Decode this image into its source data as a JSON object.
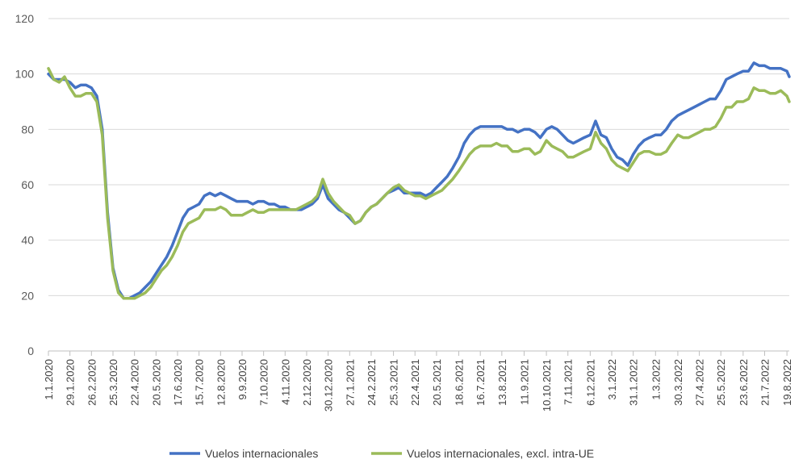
{
  "chart_data": {
    "type": "line",
    "title": "",
    "xlabel": "",
    "ylabel": "",
    "ylim": [
      0,
      120
    ],
    "y_ticks": [
      0,
      20,
      40,
      60,
      80,
      100,
      120
    ],
    "grid": "horizontal",
    "legend_position": "bottom",
    "x_range": [
      "1.1.2020",
      "22.8.2022"
    ],
    "x_tick_labels": [
      "1.1.2020",
      "29.1.2020",
      "26.2.2020",
      "25.3.2020",
      "22.4.2020",
      "20.5.2020",
      "17.6.2020",
      "15.7.2020",
      "12.8.2020",
      "9.9.2020",
      "7.10.2020",
      "4.11.2020",
      "2.12.2020",
      "30.12.2020",
      "27.1.2021",
      "24.2.2021",
      "25.3.2021",
      "22.4.2021",
      "20.5.2021",
      "18.6.2021",
      "16.7.2021",
      "13.8.2021",
      "11.9.2021",
      "10.10.2021",
      "7.11.2021",
      "6.12.2021",
      "3.1.2022",
      "31.1.2022",
      "1.3.2022",
      "30.3.2022",
      "27.4.2022",
      "25.5.2022",
      "23.6.2022",
      "21.7.2022",
      "19.8.2022"
    ],
    "series": [
      {
        "name": "Vuelos internacionales",
        "color": "#4472C4",
        "points": [
          [
            "1.1.2020",
            100
          ],
          [
            "8.1.2020",
            98
          ],
          [
            "15.1.2020",
            98
          ],
          [
            "22.1.2020",
            98
          ],
          [
            "29.1.2020",
            97
          ],
          [
            "5.2.2020",
            95
          ],
          [
            "12.2.2020",
            96
          ],
          [
            "19.2.2020",
            96
          ],
          [
            "26.2.2020",
            95
          ],
          [
            "4.3.2020",
            92
          ],
          [
            "11.3.2020",
            80
          ],
          [
            "18.3.2020",
            50
          ],
          [
            "25.3.2020",
            30
          ],
          [
            "1.4.2020",
            22
          ],
          [
            "8.4.2020",
            19
          ],
          [
            "15.4.2020",
            19
          ],
          [
            "22.4.2020",
            20
          ],
          [
            "29.4.2020",
            21
          ],
          [
            "6.5.2020",
            23
          ],
          [
            "13.5.2020",
            25
          ],
          [
            "20.5.2020",
            28
          ],
          [
            "27.5.2020",
            31
          ],
          [
            "3.6.2020",
            34
          ],
          [
            "10.6.2020",
            38
          ],
          [
            "17.6.2020",
            43
          ],
          [
            "24.6.2020",
            48
          ],
          [
            "1.7.2020",
            51
          ],
          [
            "8.7.2020",
            52
          ],
          [
            "15.7.2020",
            53
          ],
          [
            "22.7.2020",
            56
          ],
          [
            "29.7.2020",
            57
          ],
          [
            "5.8.2020",
            56
          ],
          [
            "12.8.2020",
            57
          ],
          [
            "19.8.2020",
            56
          ],
          [
            "26.8.2020",
            55
          ],
          [
            "2.9.2020",
            54
          ],
          [
            "9.9.2020",
            54
          ],
          [
            "16.9.2020",
            54
          ],
          [
            "23.9.2020",
            53
          ],
          [
            "30.9.2020",
            54
          ],
          [
            "7.10.2020",
            54
          ],
          [
            "14.10.2020",
            53
          ],
          [
            "21.10.2020",
            53
          ],
          [
            "28.10.2020",
            52
          ],
          [
            "4.11.2020",
            52
          ],
          [
            "11.11.2020",
            51
          ],
          [
            "18.11.2020",
            51
          ],
          [
            "25.11.2020",
            51
          ],
          [
            "2.12.2020",
            52
          ],
          [
            "9.12.2020",
            53
          ],
          [
            "16.12.2020",
            55
          ],
          [
            "23.12.2020",
            60
          ],
          [
            "30.12.2020",
            55
          ],
          [
            "6.1.2021",
            53
          ],
          [
            "13.1.2021",
            51
          ],
          [
            "20.1.2021",
            50
          ],
          [
            "27.1.2021",
            48
          ],
          [
            "3.2.2021",
            46
          ],
          [
            "10.2.2021",
            47
          ],
          [
            "17.2.2021",
            50
          ],
          [
            "24.2.2021",
            52
          ],
          [
            "3.3.2021",
            53
          ],
          [
            "10.3.2021",
            55
          ],
          [
            "17.3.2021",
            57
          ],
          [
            "25.3.2021",
            58
          ],
          [
            "1.4.2021",
            59
          ],
          [
            "8.4.2021",
            57
          ],
          [
            "15.4.2021",
            57
          ],
          [
            "22.4.2021",
            57
          ],
          [
            "29.4.2021",
            57
          ],
          [
            "6.5.2021",
            56
          ],
          [
            "13.5.2021",
            57
          ],
          [
            "20.5.2021",
            59
          ],
          [
            "27.5.2021",
            61
          ],
          [
            "3.6.2021",
            63
          ],
          [
            "10.6.2021",
            66
          ],
          [
            "18.6.2021",
            70
          ],
          [
            "25.6.2021",
            75
          ],
          [
            "2.7.2021",
            78
          ],
          [
            "9.7.2021",
            80
          ],
          [
            "16.7.2021",
            81
          ],
          [
            "23.7.2021",
            81
          ],
          [
            "30.7.2021",
            81
          ],
          [
            "6.8.2021",
            81
          ],
          [
            "13.8.2021",
            81
          ],
          [
            "20.8.2021",
            80
          ],
          [
            "27.8.2021",
            80
          ],
          [
            "3.9.2021",
            79
          ],
          [
            "11.9.2021",
            80
          ],
          [
            "18.9.2021",
            80
          ],
          [
            "25.9.2021",
            79
          ],
          [
            "2.10.2021",
            77
          ],
          [
            "10.10.2021",
            80
          ],
          [
            "17.10.2021",
            81
          ],
          [
            "24.10.2021",
            80
          ],
          [
            "31.10.2021",
            78
          ],
          [
            "7.11.2021",
            76
          ],
          [
            "14.11.2021",
            75
          ],
          [
            "21.11.2021",
            76
          ],
          [
            "28.11.2021",
            77
          ],
          [
            "6.12.2021",
            78
          ],
          [
            "13.12.2021",
            83
          ],
          [
            "20.12.2021",
            78
          ],
          [
            "27.12.2021",
            77
          ],
          [
            "3.1.2022",
            73
          ],
          [
            "10.1.2022",
            70
          ],
          [
            "17.1.2022",
            69
          ],
          [
            "24.1.2022",
            67
          ],
          [
            "31.1.2022",
            71
          ],
          [
            "7.2.2022",
            74
          ],
          [
            "14.2.2022",
            76
          ],
          [
            "21.2.2022",
            77
          ],
          [
            "1.3.2022",
            78
          ],
          [
            "8.3.2022",
            78
          ],
          [
            "15.3.2022",
            80
          ],
          [
            "22.3.2022",
            83
          ],
          [
            "30.3.2022",
            85
          ],
          [
            "6.4.2022",
            86
          ],
          [
            "13.4.2022",
            87
          ],
          [
            "20.4.2022",
            88
          ],
          [
            "27.4.2022",
            89
          ],
          [
            "4.5.2022",
            90
          ],
          [
            "11.5.2022",
            91
          ],
          [
            "18.5.2022",
            91
          ],
          [
            "25.5.2022",
            94
          ],
          [
            "1.6.2022",
            98
          ],
          [
            "8.6.2022",
            99
          ],
          [
            "15.6.2022",
            100
          ],
          [
            "23.6.2022",
            101
          ],
          [
            "30.6.2022",
            101
          ],
          [
            "7.7.2022",
            104
          ],
          [
            "14.7.2022",
            103
          ],
          [
            "21.7.2022",
            103
          ],
          [
            "28.7.2022",
            102
          ],
          [
            "4.8.2022",
            102
          ],
          [
            "11.8.2022",
            102
          ],
          [
            "19.8.2022",
            101
          ],
          [
            "22.8.2022",
            99
          ]
        ]
      },
      {
        "name": "Vuelos internacionales, excl. intra-UE",
        "color": "#9BBB59",
        "points": [
          [
            "1.1.2020",
            102
          ],
          [
            "8.1.2020",
            98
          ],
          [
            "15.1.2020",
            97
          ],
          [
            "22.1.2020",
            99
          ],
          [
            "29.1.2020",
            95
          ],
          [
            "5.2.2020",
            92
          ],
          [
            "12.2.2020",
            92
          ],
          [
            "19.2.2020",
            93
          ],
          [
            "26.2.2020",
            93
          ],
          [
            "4.3.2020",
            90
          ],
          [
            "11.3.2020",
            78
          ],
          [
            "18.3.2020",
            48
          ],
          [
            "25.3.2020",
            29
          ],
          [
            "1.4.2020",
            21
          ],
          [
            "8.4.2020",
            19
          ],
          [
            "15.4.2020",
            19
          ],
          [
            "22.4.2020",
            19
          ],
          [
            "29.4.2020",
            20
          ],
          [
            "6.5.2020",
            21
          ],
          [
            "13.5.2020",
            23
          ],
          [
            "20.5.2020",
            26
          ],
          [
            "27.5.2020",
            29
          ],
          [
            "3.6.2020",
            31
          ],
          [
            "10.6.2020",
            34
          ],
          [
            "17.6.2020",
            38
          ],
          [
            "24.6.2020",
            43
          ],
          [
            "1.7.2020",
            46
          ],
          [
            "8.7.2020",
            47
          ],
          [
            "15.7.2020",
            48
          ],
          [
            "22.7.2020",
            51
          ],
          [
            "29.7.2020",
            51
          ],
          [
            "5.8.2020",
            51
          ],
          [
            "12.8.2020",
            52
          ],
          [
            "19.8.2020",
            51
          ],
          [
            "26.8.2020",
            49
          ],
          [
            "2.9.2020",
            49
          ],
          [
            "9.9.2020",
            49
          ],
          [
            "16.9.2020",
            50
          ],
          [
            "23.9.2020",
            51
          ],
          [
            "30.9.2020",
            50
          ],
          [
            "7.10.2020",
            50
          ],
          [
            "14.10.2020",
            51
          ],
          [
            "21.10.2020",
            51
          ],
          [
            "28.10.2020",
            51
          ],
          [
            "4.11.2020",
            51
          ],
          [
            "11.11.2020",
            51
          ],
          [
            "18.11.2020",
            51
          ],
          [
            "25.11.2020",
            52
          ],
          [
            "2.12.2020",
            53
          ],
          [
            "9.12.2020",
            54
          ],
          [
            "16.12.2020",
            56
          ],
          [
            "23.12.2020",
            62
          ],
          [
            "30.12.2020",
            57
          ],
          [
            "6.1.2021",
            54
          ],
          [
            "13.1.2021",
            52
          ],
          [
            "20.1.2021",
            50
          ],
          [
            "27.1.2021",
            49
          ],
          [
            "3.2.2021",
            46
          ],
          [
            "10.2.2021",
            47
          ],
          [
            "17.2.2021",
            50
          ],
          [
            "24.2.2021",
            52
          ],
          [
            "3.3.2021",
            53
          ],
          [
            "10.3.2021",
            55
          ],
          [
            "17.3.2021",
            57
          ],
          [
            "25.3.2021",
            59
          ],
          [
            "1.4.2021",
            60
          ],
          [
            "8.4.2021",
            58
          ],
          [
            "15.4.2021",
            57
          ],
          [
            "22.4.2021",
            56
          ],
          [
            "29.4.2021",
            56
          ],
          [
            "6.5.2021",
            55
          ],
          [
            "13.5.2021",
            56
          ],
          [
            "20.5.2021",
            57
          ],
          [
            "27.5.2021",
            58
          ],
          [
            "3.6.2021",
            60
          ],
          [
            "10.6.2021",
            62
          ],
          [
            "18.6.2021",
            65
          ],
          [
            "25.6.2021",
            68
          ],
          [
            "2.7.2021",
            71
          ],
          [
            "9.7.2021",
            73
          ],
          [
            "16.7.2021",
            74
          ],
          [
            "23.7.2021",
            74
          ],
          [
            "30.7.2021",
            74
          ],
          [
            "6.8.2021",
            75
          ],
          [
            "13.8.2021",
            74
          ],
          [
            "20.8.2021",
            74
          ],
          [
            "27.8.2021",
            72
          ],
          [
            "3.9.2021",
            72
          ],
          [
            "11.9.2021",
            73
          ],
          [
            "18.9.2021",
            73
          ],
          [
            "25.9.2021",
            71
          ],
          [
            "2.10.2021",
            72
          ],
          [
            "10.10.2021",
            76
          ],
          [
            "17.10.2021",
            74
          ],
          [
            "24.10.2021",
            73
          ],
          [
            "31.10.2021",
            72
          ],
          [
            "7.11.2021",
            70
          ],
          [
            "14.11.2021",
            70
          ],
          [
            "21.11.2021",
            71
          ],
          [
            "28.11.2021",
            72
          ],
          [
            "6.12.2021",
            73
          ],
          [
            "13.12.2021",
            79
          ],
          [
            "20.12.2021",
            75
          ],
          [
            "27.12.2021",
            73
          ],
          [
            "3.1.2022",
            69
          ],
          [
            "10.1.2022",
            67
          ],
          [
            "17.1.2022",
            66
          ],
          [
            "24.1.2022",
            65
          ],
          [
            "31.1.2022",
            68
          ],
          [
            "7.2.2022",
            71
          ],
          [
            "14.2.2022",
            72
          ],
          [
            "21.2.2022",
            72
          ],
          [
            "1.3.2022",
            71
          ],
          [
            "8.3.2022",
            71
          ],
          [
            "15.3.2022",
            72
          ],
          [
            "22.3.2022",
            75
          ],
          [
            "30.3.2022",
            78
          ],
          [
            "6.4.2022",
            77
          ],
          [
            "13.4.2022",
            77
          ],
          [
            "20.4.2022",
            78
          ],
          [
            "27.4.2022",
            79
          ],
          [
            "4.5.2022",
            80
          ],
          [
            "11.5.2022",
            80
          ],
          [
            "18.5.2022",
            81
          ],
          [
            "25.5.2022",
            84
          ],
          [
            "1.6.2022",
            88
          ],
          [
            "8.6.2022",
            88
          ],
          [
            "15.6.2022",
            90
          ],
          [
            "23.6.2022",
            90
          ],
          [
            "30.6.2022",
            91
          ],
          [
            "7.7.2022",
            95
          ],
          [
            "14.7.2022",
            94
          ],
          [
            "21.7.2022",
            94
          ],
          [
            "28.7.2022",
            93
          ],
          [
            "4.8.2022",
            93
          ],
          [
            "11.8.2022",
            94
          ],
          [
            "19.8.2022",
            92
          ],
          [
            "22.8.2022",
            90
          ]
        ]
      }
    ]
  }
}
